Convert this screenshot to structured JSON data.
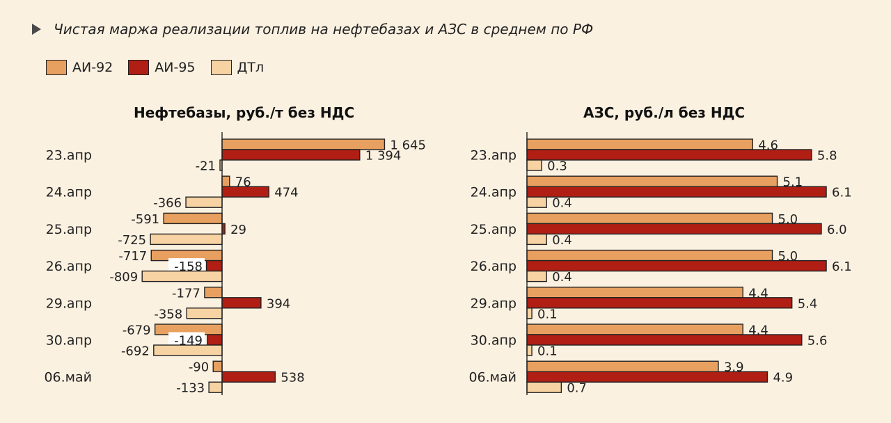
{
  "title": "Чистая маржа реализации топлив на нефтебазах и АЗС в среднем по РФ",
  "legend": [
    {
      "label": "АИ-92",
      "color": "#e8a060"
    },
    {
      "label": "АИ-95",
      "color": "#b01e14"
    },
    {
      "label": "ДТл",
      "color": "#f7d3a4"
    }
  ],
  "chart_data": [
    {
      "type": "bar",
      "orientation": "horizontal",
      "title": "Нефтебазы, руб./т без НДС",
      "categories": [
        "23.апр",
        "24.апр",
        "25.апр",
        "26.апр",
        "29.апр",
        "30.апр",
        "06.май"
      ],
      "series": [
        {
          "name": "АИ-92",
          "values": [
            1645,
            76,
            -591,
            -717,
            -177,
            -679,
            -90
          ],
          "labels": [
            "1 645",
            "76",
            "-591",
            "-717",
            "-177",
            "-679",
            "-90"
          ]
        },
        {
          "name": "АИ-95",
          "values": [
            1394,
            474,
            29,
            -158,
            394,
            -149,
            538
          ],
          "labels": [
            "1 394",
            "474",
            "29",
            "-158",
            "394",
            "-149",
            "538"
          ]
        },
        {
          "name": "ДТл",
          "values": [
            -21,
            -366,
            -725,
            -809,
            -358,
            -692,
            -133
          ],
          "labels": [
            "-21",
            "-366",
            "-725",
            "-809",
            "-358",
            "-692",
            "-133"
          ]
        }
      ]
    },
    {
      "type": "bar",
      "orientation": "horizontal",
      "title": "АЗС, руб./л без НДС",
      "categories": [
        "23.апр",
        "24.апр",
        "25.апр",
        "26.апр",
        "29.апр",
        "30.апр",
        "06.май"
      ],
      "series": [
        {
          "name": "АИ-92",
          "values": [
            4.6,
            5.1,
            5.0,
            5.0,
            4.4,
            4.4,
            3.9
          ],
          "labels": [
            "4.6",
            "5.1",
            "5.0",
            "5.0",
            "4.4",
            "4.4",
            "3.9"
          ]
        },
        {
          "name": "АИ-95",
          "values": [
            5.8,
            6.1,
            6.0,
            6.1,
            5.4,
            5.6,
            4.9
          ],
          "labels": [
            "5.8",
            "6.1",
            "6.0",
            "6.1",
            "5.4",
            "5.6",
            "4.9"
          ]
        },
        {
          "name": "ДТл",
          "values": [
            0.3,
            0.4,
            0.4,
            0.4,
            0.1,
            0.1,
            0.7
          ],
          "labels": [
            "0.3",
            "0.4",
            "0.4",
            "0.4",
            "0.1",
            "0.1",
            "0.7"
          ]
        }
      ]
    }
  ]
}
